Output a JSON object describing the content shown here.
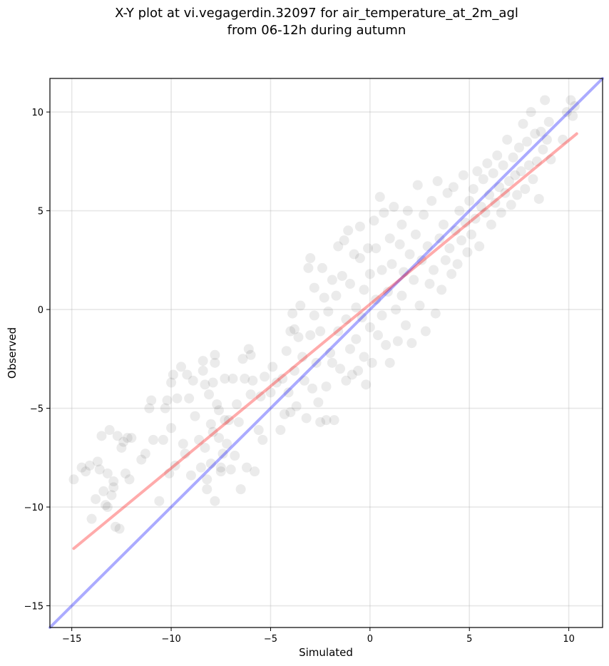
{
  "chart_data": {
    "type": "scatter",
    "title_lines": [
      "X-Y plot at vi.vegagerdin.32097 for air_temperature_at_2m_agl",
      "from 06-12h during autumn"
    ],
    "xlabel": "Simulated",
    "ylabel": "Observed",
    "xlim": [
      -16.1,
      11.7
    ],
    "ylim": [
      -16.1,
      11.7
    ],
    "xticks": [
      -15,
      -10,
      -5,
      0,
      5,
      10
    ],
    "yticks": [
      -15,
      -10,
      -5,
      0,
      5,
      10
    ],
    "xtick_labels": [
      "−15",
      "−10",
      "−5",
      "0",
      "5",
      "10"
    ],
    "ytick_labels": [
      "−15",
      "−10",
      "−5",
      "0",
      "5",
      "10"
    ],
    "grid": true,
    "series": [
      {
        "kind": "points",
        "color": "#000000",
        "opacity": 0.08,
        "points": [
          [
            -14.9,
            -8.6
          ],
          [
            -14.5,
            -8.0
          ],
          [
            -14.3,
            -8.2
          ],
          [
            -14.1,
            -7.9
          ],
          [
            -14.0,
            -10.6
          ],
          [
            -13.8,
            -9.6
          ],
          [
            -13.7,
            -7.7
          ],
          [
            -13.6,
            -8.1
          ],
          [
            -13.5,
            -6.4
          ],
          [
            -13.4,
            -9.2
          ],
          [
            -13.3,
            -9.9
          ],
          [
            -13.2,
            -8.3
          ],
          [
            -13.2,
            -10.0
          ],
          [
            -13.1,
            -6.1
          ],
          [
            -13.0,
            -9.4
          ],
          [
            -12.9,
            -9.0
          ],
          [
            -12.9,
            -8.7
          ],
          [
            -12.8,
            -11.0
          ],
          [
            -12.7,
            -6.4
          ],
          [
            -12.6,
            -11.1
          ],
          [
            -12.5,
            -7.0
          ],
          [
            -12.4,
            -6.7
          ],
          [
            -12.3,
            -8.3
          ],
          [
            -12.2,
            -6.5
          ],
          [
            -12.1,
            -8.6
          ],
          [
            -12.0,
            -6.5
          ],
          [
            -11.5,
            -7.6
          ],
          [
            -11.3,
            -7.3
          ],
          [
            -11.1,
            -5.0
          ],
          [
            -11.0,
            -4.6
          ],
          [
            -10.9,
            -6.6
          ],
          [
            -10.6,
            -9.7
          ],
          [
            -10.4,
            -6.6
          ],
          [
            -10.3,
            -5.0
          ],
          [
            -10.2,
            -4.6
          ],
          [
            -10.1,
            -8.3
          ],
          [
            -10.0,
            -3.7
          ],
          [
            -10.0,
            -6.0
          ],
          [
            -9.9,
            -3.3
          ],
          [
            -9.8,
            -7.9
          ],
          [
            -9.7,
            -4.5
          ],
          [
            -9.5,
            -2.9
          ],
          [
            -9.4,
            -6.8
          ],
          [
            -9.3,
            -7.3
          ],
          [
            -9.2,
            -3.3
          ],
          [
            -9.1,
            -4.5
          ],
          [
            -9.0,
            -8.4
          ],
          [
            -8.9,
            -3.6
          ],
          [
            -8.8,
            -5.4
          ],
          [
            -8.6,
            -6.6
          ],
          [
            -8.5,
            -8.0
          ],
          [
            -8.4,
            -2.6
          ],
          [
            -8.4,
            -3.1
          ],
          [
            -8.3,
            -7.0
          ],
          [
            -8.3,
            -3.8
          ],
          [
            -8.2,
            -8.6
          ],
          [
            -8.2,
            -9.1
          ],
          [
            -8.1,
            -4.3
          ],
          [
            -8.0,
            -5.8
          ],
          [
            -8.0,
            -7.8
          ],
          [
            -7.9,
            -3.7
          ],
          [
            -7.9,
            -6.2
          ],
          [
            -7.8,
            -2.3
          ],
          [
            -7.8,
            -2.7
          ],
          [
            -7.8,
            -9.7
          ],
          [
            -7.7,
            -4.8
          ],
          [
            -7.6,
            -6.5
          ],
          [
            -7.6,
            -5.1
          ],
          [
            -7.5,
            -8.2
          ],
          [
            -7.5,
            -8.0
          ],
          [
            -7.4,
            -7.3
          ],
          [
            -7.3,
            -3.5
          ],
          [
            -7.3,
            -5.6
          ],
          [
            -7.2,
            -6.8
          ],
          [
            -7.1,
            -5.6
          ],
          [
            -7.0,
            -8.1
          ],
          [
            -6.9,
            -3.5
          ],
          [
            -6.8,
            -7.4
          ],
          [
            -6.7,
            -4.8
          ],
          [
            -6.6,
            -5.7
          ],
          [
            -6.5,
            -9.1
          ],
          [
            -6.4,
            -2.5
          ],
          [
            -6.3,
            -3.5
          ],
          [
            -6.2,
            -8.0
          ],
          [
            -6.1,
            -2.0
          ],
          [
            -6.0,
            -2.3
          ],
          [
            -6.0,
            -4.3
          ],
          [
            -5.9,
            -3.6
          ],
          [
            -5.8,
            -8.2
          ],
          [
            -5.6,
            -6.1
          ],
          [
            -5.5,
            -4.4
          ],
          [
            -5.4,
            -6.6
          ],
          [
            -5.3,
            -3.4
          ],
          [
            -5.0,
            -4.2
          ],
          [
            -4.9,
            -2.9
          ],
          [
            -4.7,
            -3.7
          ],
          [
            -4.5,
            -6.1
          ],
          [
            -4.4,
            -3.5
          ],
          [
            -4.3,
            -5.3
          ],
          [
            -4.2,
            -2.1
          ],
          [
            -4.1,
            -4.2
          ],
          [
            -4.0,
            -1.1
          ],
          [
            -4.0,
            -5.2
          ],
          [
            -3.9,
            -0.2
          ],
          [
            -3.8,
            -1.0
          ],
          [
            -3.8,
            -3.1
          ],
          [
            -3.7,
            -4.9
          ],
          [
            -3.6,
            -1.4
          ],
          [
            -3.5,
            0.2
          ],
          [
            -3.4,
            -2.4
          ],
          [
            -3.3,
            -3.6
          ],
          [
            -3.2,
            -5.5
          ],
          [
            -3.1,
            2.1
          ],
          [
            -3.0,
            2.6
          ],
          [
            -3.0,
            -1.3
          ],
          [
            -2.9,
            -4.0
          ],
          [
            -2.8,
            1.1
          ],
          [
            -2.8,
            -0.3
          ],
          [
            -2.7,
            -2.7
          ],
          [
            -2.6,
            -4.7
          ],
          [
            -2.5,
            -5.7
          ],
          [
            -2.5,
            -1.1
          ],
          [
            -2.4,
            2.1
          ],
          [
            -2.3,
            0.6
          ],
          [
            -2.2,
            -3.9
          ],
          [
            -2.2,
            -5.6
          ],
          [
            -2.1,
            -0.1
          ],
          [
            -2.0,
            -2.2
          ],
          [
            -1.9,
            1.5
          ],
          [
            -1.9,
            -2.7
          ],
          [
            -1.8,
            -5.6
          ],
          [
            -1.7,
            0.7
          ],
          [
            -1.6,
            3.2
          ],
          [
            -1.6,
            -1.1
          ],
          [
            -1.5,
            -3.0
          ],
          [
            -1.4,
            1.7
          ],
          [
            -1.3,
            3.5
          ],
          [
            -1.2,
            -0.5
          ],
          [
            -1.2,
            -3.6
          ],
          [
            -1.1,
            4.0
          ],
          [
            -1.0,
            1.3
          ],
          [
            -1.0,
            -2.0
          ],
          [
            -0.9,
            -3.3
          ],
          [
            -0.8,
            2.8
          ],
          [
            -0.7,
            0.1
          ],
          [
            -0.7,
            -1.5
          ],
          [
            -0.6,
            -3.1
          ],
          [
            -0.5,
            4.2
          ],
          [
            -0.5,
            2.6
          ],
          [
            -0.4,
            -0.4
          ],
          [
            -0.3,
            1.0
          ],
          [
            -0.3,
            -2.4
          ],
          [
            -0.2,
            -3.8
          ],
          [
            -0.1,
            3.1
          ],
          [
            0.0,
            1.8
          ],
          [
            0.0,
            -0.9
          ],
          [
            0.1,
            -2.7
          ],
          [
            0.2,
            4.5
          ],
          [
            0.3,
            0.5
          ],
          [
            0.3,
            3.1
          ],
          [
            0.4,
            -1.3
          ],
          [
            0.5,
            5.7
          ],
          [
            0.6,
            2.0
          ],
          [
            0.6,
            -0.3
          ],
          [
            0.7,
            4.9
          ],
          [
            0.8,
            -1.8
          ],
          [
            0.9,
            0.9
          ],
          [
            1.0,
            3.6
          ],
          [
            1.0,
            -2.7
          ],
          [
            1.1,
            2.3
          ],
          [
            1.2,
            5.2
          ],
          [
            1.3,
            0.0
          ],
          [
            1.4,
            -1.6
          ],
          [
            1.5,
            3.3
          ],
          [
            1.6,
            4.3
          ],
          [
            1.6,
            0.7
          ],
          [
            1.7,
            1.9
          ],
          [
            1.8,
            -0.8
          ],
          [
            1.9,
            5.0
          ],
          [
            2.0,
            2.8
          ],
          [
            2.1,
            -1.7
          ],
          [
            2.2,
            1.5
          ],
          [
            2.3,
            3.8
          ],
          [
            2.4,
            6.3
          ],
          [
            2.5,
            0.2
          ],
          [
            2.6,
            2.5
          ],
          [
            2.7,
            4.8
          ],
          [
            2.8,
            -1.1
          ],
          [
            2.9,
            3.2
          ],
          [
            3.0,
            1.3
          ],
          [
            3.1,
            5.5
          ],
          [
            3.2,
            2.0
          ],
          [
            3.3,
            -0.2
          ],
          [
            3.4,
            6.5
          ],
          [
            3.5,
            3.6
          ],
          [
            3.6,
            1.0
          ],
          [
            3.7,
            4.3
          ],
          [
            3.8,
            2.5
          ],
          [
            3.9,
            5.9
          ],
          [
            4.0,
            3.1
          ],
          [
            4.1,
            1.8
          ],
          [
            4.2,
            6.2
          ],
          [
            4.3,
            4.0
          ],
          [
            4.4,
            2.3
          ],
          [
            4.5,
            5.0
          ],
          [
            4.6,
            3.5
          ],
          [
            4.7,
            6.8
          ],
          [
            4.8,
            4.4
          ],
          [
            4.9,
            2.9
          ],
          [
            5.0,
            5.5
          ],
          [
            5.1,
            3.8
          ],
          [
            5.2,
            6.1
          ],
          [
            5.3,
            4.6
          ],
          [
            5.4,
            7.0
          ],
          [
            5.5,
            3.2
          ],
          [
            5.6,
            5.2
          ],
          [
            5.7,
            6.6
          ],
          [
            5.8,
            4.9
          ],
          [
            5.9,
            7.4
          ],
          [
            6.0,
            5.8
          ],
          [
            6.1,
            4.3
          ],
          [
            6.2,
            6.9
          ],
          [
            6.3,
            5.4
          ],
          [
            6.4,
            7.8
          ],
          [
            6.5,
            6.2
          ],
          [
            6.6,
            4.9
          ],
          [
            6.7,
            7.3
          ],
          [
            6.8,
            5.9
          ],
          [
            6.9,
            8.6
          ],
          [
            7.0,
            6.5
          ],
          [
            7.1,
            5.3
          ],
          [
            7.2,
            7.7
          ],
          [
            7.3,
            6.8
          ],
          [
            7.4,
            5.8
          ],
          [
            7.5,
            8.2
          ],
          [
            7.6,
            7.0
          ],
          [
            7.7,
            9.4
          ],
          [
            7.8,
            6.1
          ],
          [
            7.9,
            8.5
          ],
          [
            8.0,
            7.3
          ],
          [
            8.1,
            10.0
          ],
          [
            8.2,
            6.6
          ],
          [
            8.3,
            8.9
          ],
          [
            8.4,
            7.5
          ],
          [
            8.5,
            5.6
          ],
          [
            8.6,
            9.0
          ],
          [
            8.7,
            8.1
          ],
          [
            8.8,
            10.6
          ],
          [
            8.9,
            8.6
          ],
          [
            9.0,
            9.5
          ],
          [
            9.1,
            7.6
          ],
          [
            9.7,
            8.6
          ],
          [
            9.9,
            10.0
          ],
          [
            10.1,
            10.6
          ],
          [
            10.2,
            9.8
          ],
          [
            10.3,
            10.3
          ]
        ]
      },
      {
        "kind": "line",
        "color": "#0000ff",
        "opacity": 0.33,
        "from": [
          -16.1,
          -16.1
        ],
        "to": [
          11.7,
          11.7
        ]
      },
      {
        "kind": "line",
        "color": "#ff0000",
        "opacity": 0.33,
        "from": [
          -14.9,
          -12.1
        ],
        "to": [
          10.4,
          8.9
        ]
      }
    ]
  }
}
